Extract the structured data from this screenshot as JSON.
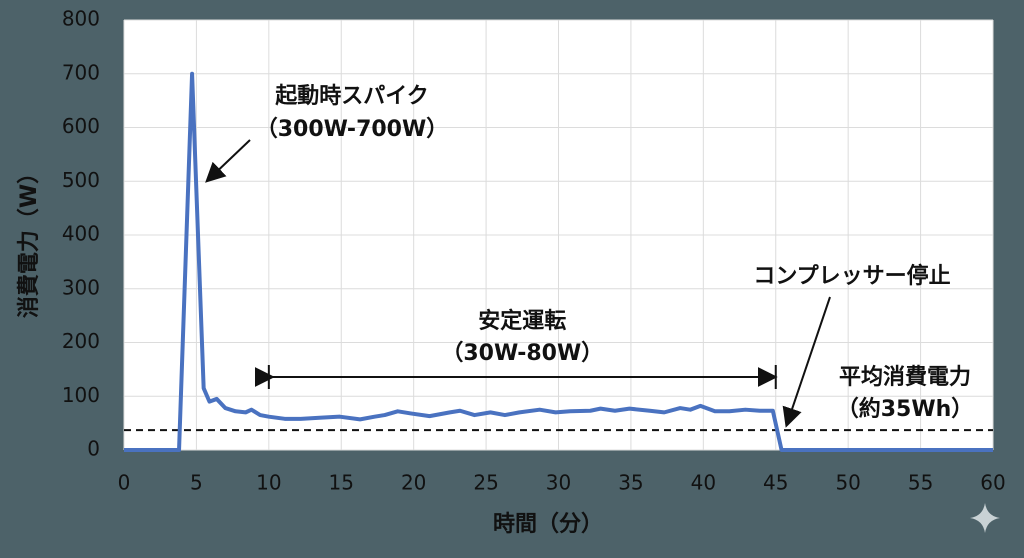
{
  "chart_data": {
    "type": "line",
    "xlabel": "時間（分）",
    "ylabel": "消費電力（W）",
    "x": [
      0,
      3.8,
      4.7,
      5.5,
      5.9,
      6.4,
      7,
      7.7,
      8.4,
      8.8,
      9.4,
      10,
      11.1,
      12.2,
      13.5,
      14.9,
      16.3,
      17.3,
      18,
      18.9,
      19.8,
      21.1,
      22.5,
      23.2,
      24.2,
      25.3,
      26.3,
      27.3,
      28.7,
      29.8,
      30.8,
      32.2,
      32.9,
      33.9,
      34.9,
      36.3,
      37.3,
      38.4,
      39.1,
      39.8,
      40.8,
      41.8,
      42.9,
      43.9,
      44.8,
      45.4,
      60
    ],
    "series": [
      {
        "name": "消費電力",
        "color": "#4a72c0",
        "values": [
          0,
          0,
          700,
          115,
          90,
          95,
          78,
          72,
          70,
          75,
          65,
          62,
          58,
          58,
          60,
          62,
          57,
          62,
          65,
          72,
          68,
          63,
          70,
          73,
          65,
          70,
          65,
          70,
          75,
          70,
          72,
          73,
          77,
          73,
          77,
          73,
          70,
          78,
          75,
          82,
          72,
          72,
          75,
          73,
          73,
          0,
          0
        ]
      }
    ],
    "xlim": [
      0,
      60
    ],
    "xticks": [
      0,
      5,
      10,
      15,
      20,
      25,
      30,
      35,
      40,
      45,
      50,
      55,
      60
    ],
    "ylim": [
      0,
      800
    ],
    "yticks": [
      0,
      100,
      200,
      300,
      400,
      500,
      600,
      700,
      800
    ],
    "grid": true,
    "reference_line": {
      "value": 37,
      "color": "#111111"
    },
    "annotations": {
      "spike": [
        "起動時スパイク",
        "（300W-700W）"
      ],
      "stable": [
        "安定運転",
        "（30W-80W）"
      ],
      "stable_range": [
        10,
        45
      ],
      "stop": [
        "コンプレッサー停止"
      ],
      "average": [
        "平均消費電力",
        "（約35Wh）"
      ]
    }
  }
}
